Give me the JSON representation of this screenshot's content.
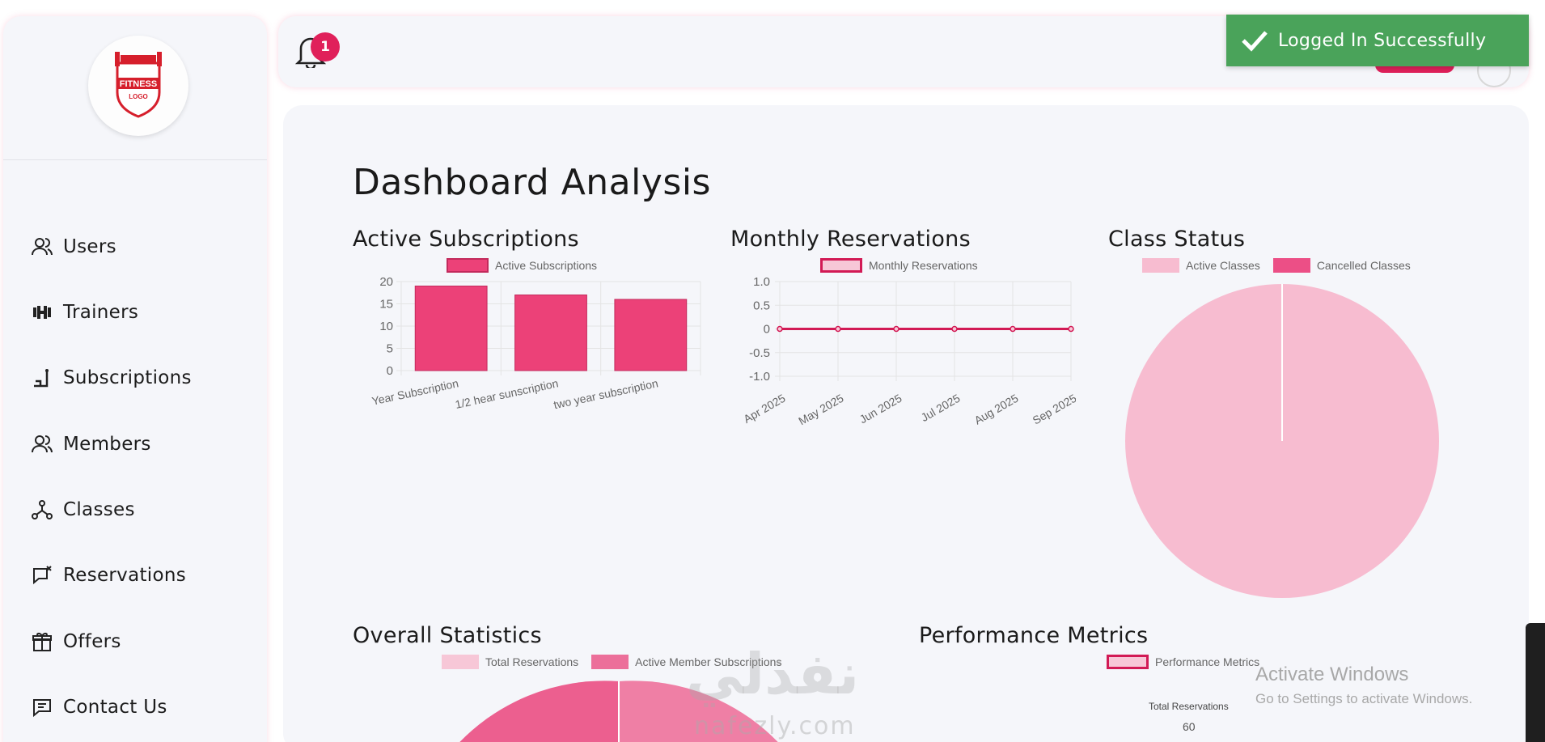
{
  "notifications": {
    "count": "1"
  },
  "toast": {
    "message": "Logged In Successfully"
  },
  "logo": {
    "line1": "FITNESS",
    "line2": "LOGO"
  },
  "sidebar": {
    "items": [
      {
        "label": "Users",
        "icon": "users-icon"
      },
      {
        "label": "Trainers",
        "icon": "dumbbell-icon"
      },
      {
        "label": "Subscriptions",
        "icon": "subscriptions-icon"
      },
      {
        "label": "Members",
        "icon": "members-icon"
      },
      {
        "label": "Classes",
        "icon": "classes-icon"
      },
      {
        "label": "Reservations",
        "icon": "reservations-icon"
      },
      {
        "label": "Offers",
        "icon": "gift-icon"
      },
      {
        "label": "Contact Us",
        "icon": "chat-icon"
      }
    ]
  },
  "page": {
    "title": "Dashboard Analysis"
  },
  "colors": {
    "accent": "#e0205a",
    "bar": "#ec4178",
    "pie_light": "#f7bcd0",
    "pie_dark": "#ec4f86",
    "toast": "#4aa35a"
  },
  "chart_data": [
    {
      "type": "bar",
      "title": "Active Subscriptions",
      "legend": "Active Subscriptions",
      "categories": [
        "Year Subscription",
        "1/2 hear sunscription",
        "two year subscription"
      ],
      "values": [
        19,
        17,
        16
      ],
      "ylim": [
        0,
        20
      ],
      "yticks": [
        "20",
        "15",
        "10",
        "5",
        "0"
      ]
    },
    {
      "type": "line",
      "title": "Monthly Reservations",
      "legend": "Monthly Reservations",
      "categories": [
        "Apr 2025",
        "May 2025",
        "Jun 2025",
        "Jul 2025",
        "Aug 2025",
        "Sep 2025"
      ],
      "values": [
        0,
        0,
        0,
        0,
        0,
        0
      ],
      "ylim": [
        -1.0,
        1.0
      ],
      "yticks": [
        "1.0",
        "0.5",
        "0",
        "-0.5",
        "-1.0"
      ]
    },
    {
      "type": "pie",
      "title": "Class Status",
      "legend": [
        "Active Classes",
        "Cancelled Classes"
      ],
      "values": [
        1,
        0
      ]
    },
    {
      "type": "pie",
      "title": "Overall Statistics",
      "legend": [
        "Total Reservations",
        "Active Member Subscriptions"
      ]
    },
    {
      "type": "bar",
      "title": "Performance Metrics",
      "legend": "Performance Metrics",
      "categories": [
        "Total Reservations"
      ],
      "yticks": [
        "60"
      ]
    }
  ],
  "watermark": {
    "arabic": "نفذلي",
    "latin": "nafezly.com"
  },
  "windows": {
    "line1": "Activate Windows",
    "line2": "Go to Settings to activate Windows."
  }
}
